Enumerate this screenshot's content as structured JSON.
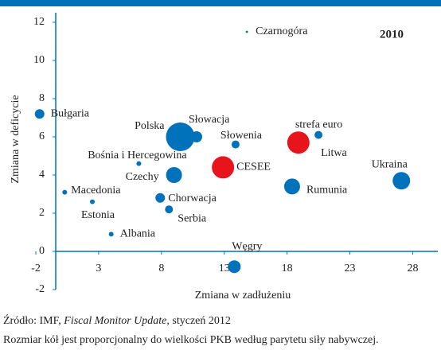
{
  "chart_data": {
    "type": "scatter",
    "annotation": "2010",
    "xlabel": "Zmiana w zadłużeniu",
    "ylabel": "Zmiana w deficycie",
    "xlim": [
      -2,
      30
    ],
    "xticks": [
      -2,
      3,
      8,
      13,
      18,
      23,
      28
    ],
    "ylim": [
      -2,
      12.5
    ],
    "yticks": [
      -2,
      0,
      2,
      4,
      6,
      8,
      10,
      12
    ],
    "names": [
      "Czarnogóra",
      "Bułgaria",
      "Polska",
      "Słowacja",
      "Słowenia",
      "strefa euro",
      "Litwa",
      "Bośnia i Hercegowina",
      "Czechy",
      "CESEE",
      "Ukraina",
      "Rumunia",
      "Macedonia",
      "Chorwacja",
      "Estonia",
      "Serbia",
      "Albania",
      "Węgry"
    ],
    "x": [
      14.8,
      -1.7,
      9.5,
      10.8,
      13.9,
      18.9,
      20.5,
      6.2,
      9.0,
      12.9,
      27.1,
      18.4,
      0.3,
      7.9,
      2.5,
      8.6,
      4.0,
      13.8
    ],
    "y": [
      11.5,
      7.2,
      6.0,
      6.0,
      5.6,
      5.7,
      6.1,
      4.6,
      4.0,
      4.4,
      3.7,
      3.4,
      3.1,
      2.8,
      2.6,
      2.2,
      0.9,
      -0.8
    ],
    "sizes": [
      2,
      36,
      324,
      49,
      25,
      196,
      25,
      9,
      100,
      196,
      121,
      100,
      9,
      36,
      9,
      25,
      9,
      64
    ],
    "colors": [
      "#0072bc",
      "#0072bc",
      "#0072bc",
      "#0072bc",
      "#0072bc",
      "#e8141c",
      "#0072bc",
      "#0072bc",
      "#0072bc",
      "#e8141c",
      "#0072bc",
      "#0072bc",
      "#0072bc",
      "#0072bc",
      "#0072bc",
      "#0072bc",
      "#0072bc",
      "#0072bc"
    ]
  },
  "footer": {
    "source_prefix": "Źródło: IMF, ",
    "source_italic": "Fiscal Monitor Update",
    "source_suffix": ", styczeń 2012",
    "note": "Rozmiar kół jest proporcjonalny do wielkości PKB według parytetu siły nabywczej."
  }
}
